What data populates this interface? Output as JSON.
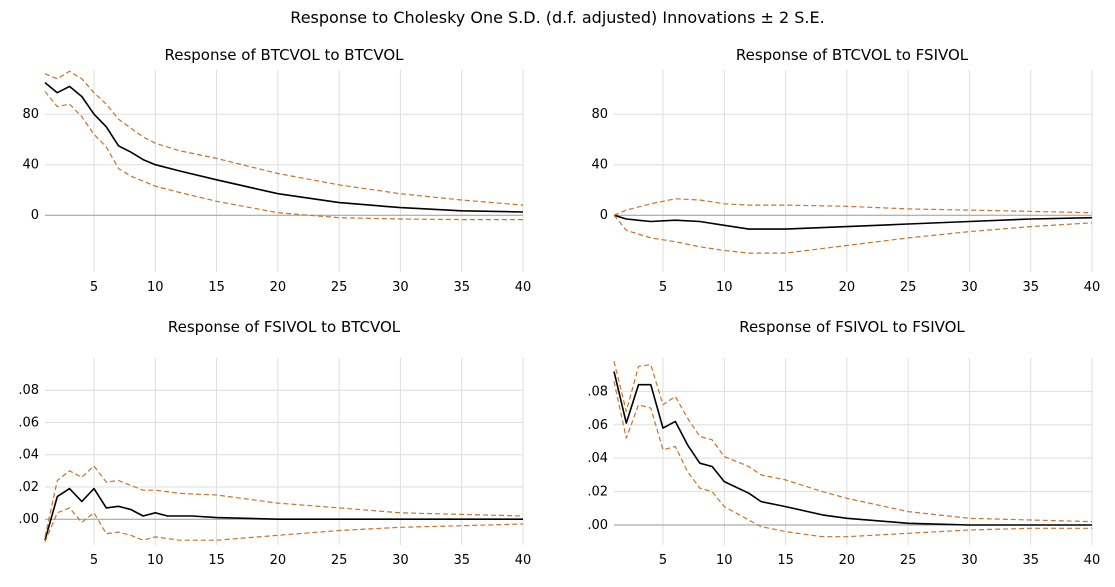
{
  "title": "Response to Cholesky One S.D. (d.f. adjusted) Innovations ± 2 S.E.",
  "colors": {
    "response": "#000000",
    "band": "#c8742a",
    "grid": "#dedede",
    "zero": "#9a9a9a"
  },
  "chart_data": [
    {
      "type": "line",
      "title": "Response of BTCVOL to BTCVOL",
      "xlim": [
        1,
        40
      ],
      "ylim": [
        -45,
        115
      ],
      "x_ticks": [
        5,
        10,
        15,
        20,
        25,
        30,
        35,
        40
      ],
      "y_ticks": [
        0,
        40,
        80
      ],
      "y_tick_labels": [
        "0",
        "40",
        "80"
      ],
      "grid": true,
      "series": [
        {
          "role": "response",
          "points": [
            [
              1,
              105
            ],
            [
              2,
              97
            ],
            [
              3,
              102
            ],
            [
              4,
              94
            ],
            [
              5,
              80
            ],
            [
              6,
              70
            ],
            [
              7,
              55
            ],
            [
              8,
              50
            ],
            [
              9,
              44
            ],
            [
              10,
              40
            ],
            [
              12,
              35
            ],
            [
              15,
              28
            ],
            [
              20,
              17
            ],
            [
              25,
              10
            ],
            [
              30,
              6
            ],
            [
              35,
              3.5
            ],
            [
              40,
              2.5
            ]
          ]
        },
        {
          "role": "upper",
          "points": [
            [
              1,
              112
            ],
            [
              2,
              108
            ],
            [
              3,
              114
            ],
            [
              4,
              108
            ],
            [
              5,
              97
            ],
            [
              6,
              88
            ],
            [
              7,
              76
            ],
            [
              8,
              69
            ],
            [
              9,
              62
            ],
            [
              10,
              57
            ],
            [
              12,
              51
            ],
            [
              15,
              45
            ],
            [
              20,
              33
            ],
            [
              25,
              24
            ],
            [
              30,
              17
            ],
            [
              35,
              12
            ],
            [
              40,
              8
            ]
          ]
        },
        {
          "role": "lower",
          "points": [
            [
              1,
              98
            ],
            [
              2,
              86
            ],
            [
              3,
              88
            ],
            [
              4,
              78
            ],
            [
              5,
              64
            ],
            [
              6,
              54
            ],
            [
              7,
              37
            ],
            [
              8,
              31
            ],
            [
              9,
              27
            ],
            [
              10,
              23
            ],
            [
              12,
              18
            ],
            [
              15,
              11
            ],
            [
              20,
              2
            ],
            [
              25,
              -2
            ],
            [
              30,
              -3
            ],
            [
              35,
              -3.5
            ],
            [
              40,
              -3.5
            ]
          ]
        }
      ]
    },
    {
      "type": "line",
      "title": "Response of BTCVOL to FSIVOL",
      "xlim": [
        1,
        40
      ],
      "ylim": [
        -45,
        115
      ],
      "x_ticks": [
        5,
        10,
        15,
        20,
        25,
        30,
        35,
        40
      ],
      "y_ticks": [
        0,
        40,
        80
      ],
      "y_tick_labels": [
        "0",
        "40",
        "80"
      ],
      "grid": true,
      "series": [
        {
          "role": "response",
          "points": [
            [
              1,
              0
            ],
            [
              2,
              -3
            ],
            [
              4,
              -5
            ],
            [
              6,
              -4
            ],
            [
              8,
              -5
            ],
            [
              10,
              -8
            ],
            [
              12,
              -11
            ],
            [
              15,
              -11
            ],
            [
              20,
              -9
            ],
            [
              25,
              -7
            ],
            [
              30,
              -5
            ],
            [
              35,
              -3
            ],
            [
              40,
              -2
            ]
          ]
        },
        {
          "role": "upper",
          "points": [
            [
              1,
              0
            ],
            [
              2,
              4
            ],
            [
              4,
              9
            ],
            [
              6,
              13
            ],
            [
              8,
              12
            ],
            [
              10,
              9
            ],
            [
              12,
              8
            ],
            [
              15,
              8
            ],
            [
              20,
              7
            ],
            [
              25,
              5
            ],
            [
              30,
              4
            ],
            [
              35,
              3
            ],
            [
              40,
              2
            ]
          ]
        },
        {
          "role": "lower",
          "points": [
            [
              1,
              0
            ],
            [
              2,
              -12
            ],
            [
              4,
              -18
            ],
            [
              6,
              -21
            ],
            [
              8,
              -25
            ],
            [
              10,
              -28
            ],
            [
              12,
              -30
            ],
            [
              15,
              -30
            ],
            [
              20,
              -24
            ],
            [
              25,
              -18
            ],
            [
              30,
              -13
            ],
            [
              35,
              -9
            ],
            [
              40,
              -6
            ]
          ]
        }
      ]
    },
    {
      "type": "line",
      "title": "Response of FSIVOL to BTCVOL",
      "xlim": [
        1,
        40
      ],
      "ylim": [
        -0.016,
        0.1
      ],
      "x_ticks": [
        5,
        10,
        15,
        20,
        25,
        30,
        35,
        40
      ],
      "y_ticks": [
        0,
        0.02,
        0.04,
        0.06,
        0.08
      ],
      "y_tick_labels": [
        ".00",
        ".02",
        ".04",
        ".06",
        ".08"
      ],
      "grid": true,
      "series": [
        {
          "role": "response",
          "points": [
            [
              1,
              -0.013
            ],
            [
              2,
              0.014
            ],
            [
              3,
              0.019
            ],
            [
              4,
              0.011
            ],
            [
              5,
              0.019
            ],
            [
              6,
              0.007
            ],
            [
              7,
              0.008
            ],
            [
              8,
              0.006
            ],
            [
              9,
              0.002
            ],
            [
              10,
              0.004
            ],
            [
              11,
              0.002
            ],
            [
              13,
              0.002
            ],
            [
              15,
              0.001
            ],
            [
              20,
              0
            ],
            [
              25,
              0
            ],
            [
              30,
              0
            ],
            [
              35,
              0
            ],
            [
              40,
              0
            ]
          ]
        },
        {
          "role": "upper",
          "points": [
            [
              1,
              -0.011
            ],
            [
              2,
              0.024
            ],
            [
              3,
              0.03
            ],
            [
              4,
              0.026
            ],
            [
              5,
              0.033
            ],
            [
              6,
              0.023
            ],
            [
              7,
              0.024
            ],
            [
              8,
              0.021
            ],
            [
              9,
              0.018
            ],
            [
              10,
              0.018
            ],
            [
              12,
              0.016
            ],
            [
              15,
              0.015
            ],
            [
              20,
              0.01
            ],
            [
              25,
              0.007
            ],
            [
              30,
              0.004
            ],
            [
              35,
              0.003
            ],
            [
              40,
              0.002
            ]
          ]
        },
        {
          "role": "lower",
          "points": [
            [
              1,
              -0.014
            ],
            [
              2,
              0.004
            ],
            [
              3,
              0.007
            ],
            [
              4,
              -0.002
            ],
            [
              5,
              0.004
            ],
            [
              6,
              -0.009
            ],
            [
              7,
              -0.008
            ],
            [
              8,
              -0.01
            ],
            [
              9,
              -0.013
            ],
            [
              10,
              -0.011
            ],
            [
              12,
              -0.013
            ],
            [
              15,
              -0.013
            ],
            [
              20,
              -0.01
            ],
            [
              25,
              -0.007
            ],
            [
              30,
              -0.005
            ],
            [
              35,
              -0.004
            ],
            [
              40,
              -0.003
            ]
          ]
        }
      ]
    },
    {
      "type": "line",
      "title": "Response of FSIVOL to FSIVOL",
      "xlim": [
        1,
        40
      ],
      "ylim": [
        -0.012,
        0.1
      ],
      "x_ticks": [
        5,
        10,
        15,
        20,
        25,
        30,
        35,
        40
      ],
      "y_ticks": [
        0,
        0.02,
        0.04,
        0.06,
        0.08
      ],
      "y_tick_labels": [
        ".00",
        ".02",
        ".04",
        ".06",
        ".08"
      ],
      "grid": true,
      "series": [
        {
          "role": "response",
          "points": [
            [
              1,
              0.092
            ],
            [
              2,
              0.061
            ],
            [
              3,
              0.084
            ],
            [
              4,
              0.084
            ],
            [
              5,
              0.058
            ],
            [
              6,
              0.062
            ],
            [
              7,
              0.048
            ],
            [
              8,
              0.037
            ],
            [
              9,
              0.035
            ],
            [
              10,
              0.026
            ],
            [
              12,
              0.019
            ],
            [
              13,
              0.014
            ],
            [
              15,
              0.011
            ],
            [
              18,
              0.006
            ],
            [
              20,
              0.004
            ],
            [
              25,
              0.001
            ],
            [
              30,
              0
            ],
            [
              35,
              0
            ],
            [
              40,
              0
            ]
          ]
        },
        {
          "role": "upper",
          "points": [
            [
              1,
              0.098
            ],
            [
              2,
              0.068
            ],
            [
              3,
              0.095
            ],
            [
              4,
              0.096
            ],
            [
              5,
              0.072
            ],
            [
              6,
              0.077
            ],
            [
              7,
              0.064
            ],
            [
              8,
              0.053
            ],
            [
              9,
              0.051
            ],
            [
              10,
              0.041
            ],
            [
              12,
              0.035
            ],
            [
              13,
              0.03
            ],
            [
              15,
              0.027
            ],
            [
              18,
              0.02
            ],
            [
              20,
              0.016
            ],
            [
              25,
              0.008
            ],
            [
              30,
              0.004
            ],
            [
              35,
              0.003
            ],
            [
              40,
              0.002
            ]
          ]
        },
        {
          "role": "lower",
          "points": [
            [
              1,
              0.086
            ],
            [
              2,
              0.052
            ],
            [
              3,
              0.072
            ],
            [
              4,
              0.07
            ],
            [
              5,
              0.045
            ],
            [
              6,
              0.047
            ],
            [
              7,
              0.032
            ],
            [
              8,
              0.022
            ],
            [
              9,
              0.02
            ],
            [
              10,
              0.011
            ],
            [
              12,
              0.003
            ],
            [
              13,
              -0.001
            ],
            [
              15,
              -0.004
            ],
            [
              18,
              -0.007
            ],
            [
              20,
              -0.007
            ],
            [
              25,
              -0.005
            ],
            [
              30,
              -0.003
            ],
            [
              35,
              -0.002
            ],
            [
              40,
              -0.002
            ]
          ]
        }
      ]
    }
  ]
}
